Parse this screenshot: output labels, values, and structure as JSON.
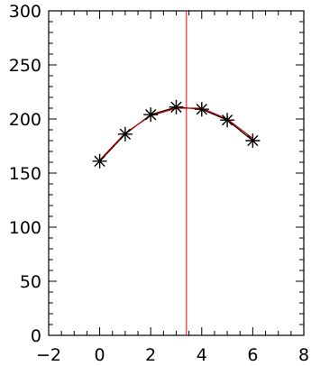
{
  "chart_data": {
    "type": "line",
    "title": "",
    "xlabel": "",
    "ylabel": "",
    "xlim": [
      -2,
      8
    ],
    "ylim": [
      0,
      300
    ],
    "x_ticks": [
      -2,
      0,
      2,
      4,
      6,
      8
    ],
    "y_ticks": [
      0,
      50,
      100,
      150,
      200,
      250,
      300
    ],
    "grid": false,
    "series": [
      {
        "x": [
          0,
          1,
          2,
          3,
          4,
          5,
          6
        ],
        "values": [
          161,
          186,
          204,
          211,
          209,
          199,
          180
        ],
        "marker": "asterisk",
        "marker_color": "#000000"
      }
    ],
    "fit_curve": {
      "color": "#cc0000",
      "x": [
        0,
        1,
        2,
        3,
        4,
        5,
        6
      ],
      "values": [
        162,
        187,
        203,
        210,
        210,
        200,
        182
      ]
    },
    "vertical_line": {
      "x": 3.4,
      "color": "#ff0000"
    },
    "axis_color": "#000000"
  }
}
